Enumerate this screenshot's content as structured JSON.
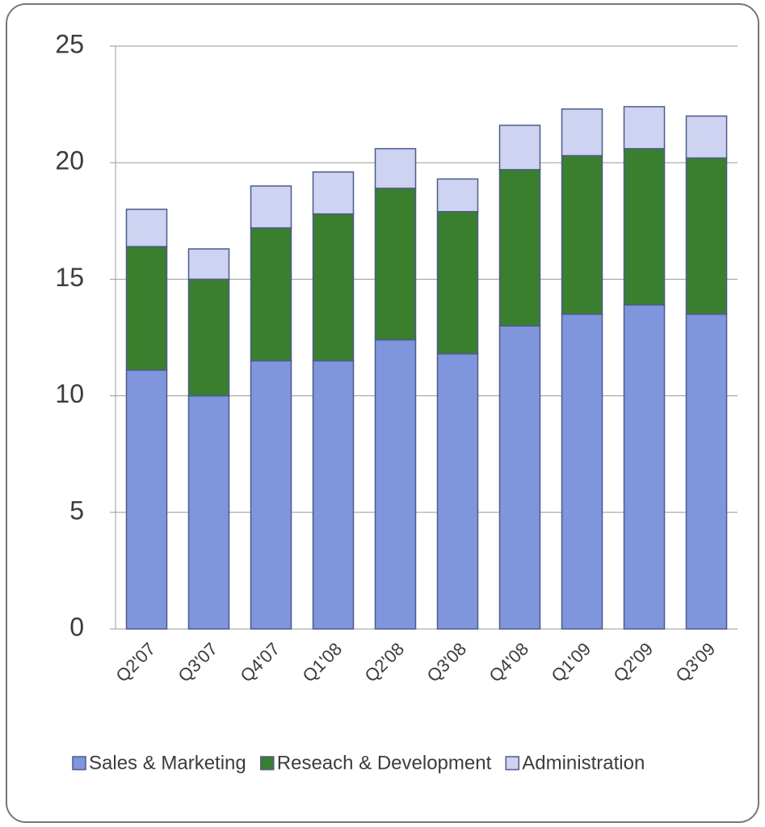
{
  "chart_data": {
    "type": "stacked_bar",
    "categories": [
      "Q2'07",
      "Q3'07",
      "Q4'07",
      "Q1'08",
      "Q2'08",
      "Q3'08",
      "Q4'08",
      "Q1'09",
      "Q2'09",
      "Q3'09"
    ],
    "series": [
      {
        "name": "Sales & Marketing",
        "color": "#7f96dc",
        "values": [
          11.1,
          10.0,
          11.5,
          11.5,
          12.4,
          11.8,
          13.0,
          13.5,
          13.9,
          13.5
        ]
      },
      {
        "name": "Reseach & Development",
        "color": "#3a7f2e",
        "values": [
          5.3,
          5.0,
          5.7,
          6.3,
          6.5,
          6.1,
          6.7,
          6.8,
          6.7,
          6.7
        ]
      },
      {
        "name": "Administration",
        "color": "#cdd3f0",
        "values": [
          1.6,
          1.3,
          1.8,
          1.8,
          1.7,
          1.4,
          1.9,
          2.0,
          1.8,
          1.8
        ]
      }
    ],
    "ylim": [
      0,
      25
    ],
    "yticks": [
      0,
      5,
      10,
      15,
      20,
      25
    ],
    "grid": true,
    "legend": "bottom"
  }
}
